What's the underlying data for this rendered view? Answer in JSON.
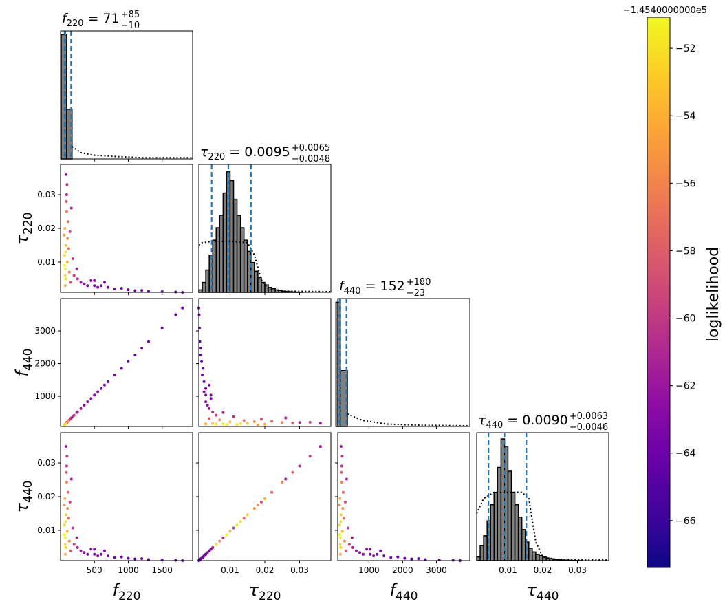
{
  "chart_data": {
    "type": "corner",
    "params": [
      {
        "symbol": "f",
        "subscript": "220",
        "lim": [
          0,
          1950
        ],
        "ticks": [
          500,
          1000,
          1500
        ],
        "title": {
          "value": "= 71",
          "upper": "+85",
          "lower": "−10"
        },
        "quantiles": [
          61,
          71,
          156
        ],
        "hist": {
          "bins": [
            10,
            90,
            170
          ],
          "counts": [
            1.0,
            0.4
          ],
          "ylim": [
            0,
            1.03
          ]
        },
        "prior": {
          "x": [
            170,
            300,
            500,
            800,
            1200,
            1950
          ],
          "y": [
            0.1,
            0.05,
            0.03,
            0.02,
            0.01,
            0.01
          ]
        }
      },
      {
        "symbol": "τ",
        "subscript": "220",
        "lim": [
          0.001,
          0.039
        ],
        "ticks": [
          0.01,
          0.02,
          0.03
        ],
        "title": {
          "value": "= 0.0095",
          "upper": "+0.0065",
          "lower": "−0.0048"
        },
        "quantiles": [
          0.0047,
          0.0095,
          0.016
        ],
        "hist": {
          "bins": [
            0.001,
            0.002,
            0.003,
            0.004,
            0.005,
            0.006,
            0.007,
            0.008,
            0.009,
            0.01,
            0.011,
            0.012,
            0.013,
            0.014,
            0.015,
            0.016,
            0.017,
            0.018,
            0.019,
            0.02,
            0.021,
            0.022,
            0.023,
            0.024,
            0.025,
            0.026,
            0.027,
            0.028,
            0.029,
            0.03,
            0.031
          ],
          "counts": [
            0.02,
            0.08,
            0.18,
            0.3,
            0.42,
            0.52,
            0.62,
            0.8,
            0.97,
            0.9,
            0.75,
            0.62,
            0.52,
            0.42,
            0.33,
            0.24,
            0.17,
            0.12,
            0.08,
            0.06,
            0.04,
            0.03,
            0.02,
            0.015,
            0.01,
            0.008,
            0.005,
            0.003,
            0.002,
            0.001
          ],
          "ylim": [
            0,
            1.03
          ]
        },
        "prior": {
          "x": [
            0.001,
            0.002,
            0.005,
            0.01,
            0.015,
            0.017,
            0.019,
            0.021,
            0.025,
            0.039
          ],
          "y": [
            0.38,
            0.4,
            0.41,
            0.41,
            0.4,
            0.3,
            0.1,
            0.03,
            0.01,
            0.005
          ]
        }
      },
      {
        "symbol": "f",
        "subscript": "440",
        "lim": [
          75,
          3990
        ],
        "ticks": [
          1000,
          2000,
          3000
        ],
        "title": {
          "value": "= 152",
          "upper": "+180",
          "lower": "−23"
        },
        "quantiles": [
          129,
          152,
          332
        ],
        "hist": {
          "bins": [
            20,
            150,
            360
          ],
          "counts": [
            1.0,
            0.45
          ],
          "ylim": [
            0,
            1.03
          ]
        },
        "prior": {
          "x": [
            360,
            800,
            1500,
            2500,
            3990
          ],
          "y": [
            0.1,
            0.05,
            0.02,
            0.01,
            0.005
          ]
        }
      },
      {
        "symbol": "τ",
        "subscript": "440",
        "lim": [
          0.001,
          0.039
        ],
        "ticks": [
          0.01,
          0.02,
          0.03
        ],
        "title": {
          "value": "= 0.0090",
          "upper": "+0.0063",
          "lower": "−0.0046"
        },
        "quantiles": [
          0.0044,
          0.009,
          0.0153
        ],
        "hist": {
          "bins": [
            0.001,
            0.002,
            0.003,
            0.004,
            0.005,
            0.006,
            0.007,
            0.008,
            0.009,
            0.01,
            0.011,
            0.012,
            0.013,
            0.014,
            0.015,
            0.016,
            0.017,
            0.018,
            0.019,
            0.02,
            0.021,
            0.022,
            0.023,
            0.024,
            0.025,
            0.026,
            0.027,
            0.028,
            0.029,
            0.03,
            0.031
          ],
          "counts": [
            0.03,
            0.12,
            0.2,
            0.32,
            0.45,
            0.55,
            0.75,
            0.98,
            0.92,
            0.72,
            0.55,
            0.45,
            0.35,
            0.25,
            0.15,
            0.1,
            0.07,
            0.05,
            0.04,
            0.03,
            0.02,
            0.015,
            0.01,
            0.008,
            0.006,
            0.004,
            0.003,
            0.002,
            0.001,
            0.001
          ],
          "ylim": [
            0,
            1.03
          ]
        },
        "prior": {
          "x": [
            0.001,
            0.003,
            0.006,
            0.01,
            0.014,
            0.016,
            0.018,
            0.02,
            0.024,
            0.039
          ],
          "y": [
            0.38,
            0.5,
            0.55,
            0.55,
            0.55,
            0.5,
            0.15,
            0.03,
            0.01,
            0.005
          ]
        }
      }
    ],
    "samples": [
      [
        60,
        70,
        80,
        65,
        90,
        75,
        100,
        55,
        85,
        95,
        110,
        70,
        130,
        150,
        60,
        120,
        200,
        250,
        300,
        350,
        400,
        450,
        500,
        550,
        600,
        700,
        800,
        900,
        1000,
        1100,
        1200,
        1300,
        1500,
        1700,
        1800,
        80,
        90,
        140,
        180,
        240,
        160,
        105,
        75,
        68,
        500,
        650
      ],
      [
        0.012,
        0.008,
        0.015,
        0.02,
        0.025,
        0.005,
        0.01,
        0.018,
        0.028,
        0.033,
        0.022,
        0.003,
        0.007,
        0.004,
        0.009,
        0.014,
        0.006,
        0.005,
        0.004,
        0.0035,
        0.003,
        0.0045,
        0.003,
        0.0025,
        0.003,
        0.0025,
        0.002,
        0.0022,
        0.0018,
        0.0015,
        0.0016,
        0.0013,
        0.0012,
        0.0011,
        0.001,
        0.036,
        0.03,
        0.019,
        0.011,
        0.008,
        0.026,
        0.017,
        0.013,
        0.006,
        0.0045,
        0.004
      ],
      [
        133,
        154,
        174,
        143,
        195,
        164,
        215,
        123,
        184,
        205,
        236,
        154,
        277,
        318,
        133,
        256,
        420,
        523,
        625,
        728,
        830,
        933,
        1035,
        1138,
        1240,
        1445,
        1650,
        1855,
        2060,
        2265,
        2470,
        2675,
        3085,
        3495,
        3700,
        174,
        195,
        297,
        379,
        502,
        338,
        225,
        164,
        149,
        1035,
        1343
      ],
      [
        0.0116,
        0.0078,
        0.0146,
        0.0194,
        0.0243,
        0.0049,
        0.0097,
        0.0175,
        0.0272,
        0.032,
        0.0213,
        0.0029,
        0.0068,
        0.0039,
        0.0087,
        0.0136,
        0.0058,
        0.0049,
        0.0039,
        0.0034,
        0.0029,
        0.0044,
        0.0029,
        0.0024,
        0.0029,
        0.0024,
        0.0019,
        0.0021,
        0.0017,
        0.0015,
        0.0016,
        0.0013,
        0.0012,
        0.0011,
        0.001,
        0.0349,
        0.0291,
        0.0184,
        0.0107,
        0.0078,
        0.0252,
        0.0165,
        0.0126,
        0.0058,
        0.0044,
        0.0039
      ]
    ],
    "loglikelihood": [
      -52,
      -51.5,
      -53,
      -54,
      -56,
      -52.5,
      -53.5,
      -55,
      -58,
      -60,
      -57,
      -54,
      -56,
      -58,
      -51.2,
      -57,
      -60,
      -61,
      -62,
      -62.5,
      -63,
      -63,
      -63.5,
      -63,
      -63.5,
      -64,
      -63.5,
      -64,
      -64,
      -64.5,
      -64,
      -64.5,
      -64,
      -64.5,
      -64.5,
      -62,
      -61,
      -59,
      -60,
      -61,
      -61.5,
      -55.5,
      -51.8,
      -52.2,
      -63,
      -63.5
    ],
    "colorbar": {
      "label": "loglikelihood",
      "offset_text": "−1.4540000000e5",
      "colormap": "plasma",
      "lim": [
        -67.39,
        -51.08
      ],
      "ticks": [
        {
          "value": -52,
          "label": "−52"
        },
        {
          "value": -54,
          "label": "−54"
        },
        {
          "value": -56,
          "label": "−56"
        },
        {
          "value": -58,
          "label": "−58"
        },
        {
          "value": -60,
          "label": "−60"
        },
        {
          "value": -62,
          "label": "−62"
        },
        {
          "value": -64,
          "label": "−64"
        },
        {
          "value": -66,
          "label": "−66"
        }
      ]
    }
  }
}
